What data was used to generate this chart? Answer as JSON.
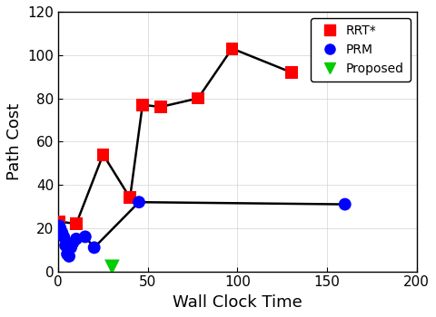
{
  "rrt_x": [
    0.5,
    10,
    25,
    40,
    47,
    57,
    78,
    97,
    130
  ],
  "rrt_y": [
    23,
    22,
    54,
    34,
    77,
    76,
    80,
    103,
    92
  ],
  "prm_x": [
    0.5,
    1,
    2,
    3,
    4,
    5,
    6,
    7,
    8,
    10,
    15,
    20,
    45,
    160
  ],
  "prm_y": [
    21,
    20,
    18,
    16,
    12,
    8,
    7,
    11,
    13,
    15,
    16,
    11,
    32,
    31
  ],
  "proposed_x": [
    30
  ],
  "proposed_y": [
    2
  ],
  "xlabel": "Wall Clock Time",
  "ylabel": "Path Cost",
  "xlim": [
    0,
    200
  ],
  "ylim": [
    0,
    120
  ],
  "xticks": [
    0,
    50,
    100,
    150,
    200
  ],
  "yticks": [
    0,
    20,
    40,
    60,
    80,
    100,
    120
  ],
  "rrt_color": "#FF0000",
  "prm_color": "#0000FF",
  "proposed_color": "#00CC00",
  "line_color": "#000000",
  "legend_labels": [
    "RRT*",
    "PRM",
    "Proposed"
  ],
  "marker_size_sq": 10,
  "marker_size_circle": 10,
  "marker_size_tri": 12,
  "line_width": 1.8,
  "label_fontsize": 13,
  "tick_fontsize": 11,
  "legend_fontsize": 10
}
